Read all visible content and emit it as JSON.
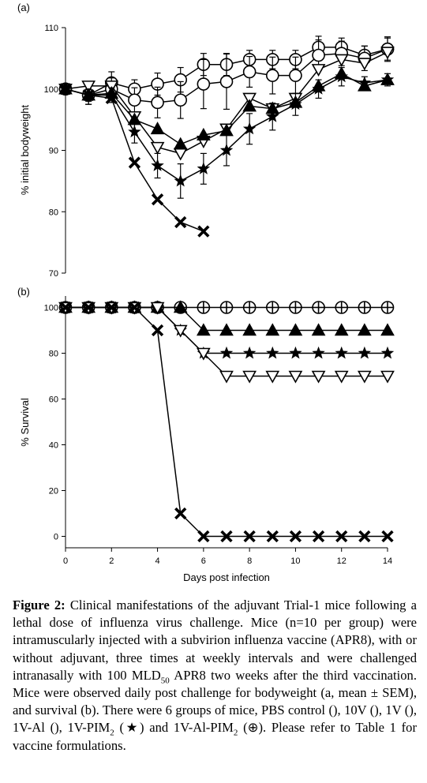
{
  "chart_data": [
    {
      "type": "line",
      "panel_label": "(a)",
      "ylabel": "% initial bodyweight",
      "xlim": [
        0,
        14
      ],
      "ylim": [
        70,
        110
      ],
      "yticks": [
        "70",
        "80",
        "90",
        "100",
        "110"
      ],
      "series": [
        {
          "marker": "circle",
          "x": [
            0,
            1,
            2,
            3,
            4,
            5,
            6,
            7,
            8,
            9,
            10,
            11,
            12,
            13,
            14
          ],
          "y": [
            100,
            99,
            101,
            100,
            100.8,
            101.5,
            104,
            104,
            104.8,
            104.8,
            104.8,
            106.8,
            106.8,
            105.5,
            106.5
          ],
          "err": [
            0.5,
            1.5,
            1.8,
            1.5,
            1.8,
            2,
            1.8,
            1.8,
            1.5,
            1.5,
            1.5,
            1.8,
            1.5,
            1.5,
            1.8
          ]
        },
        {
          "marker": "circle",
          "x": [
            0,
            1,
            2,
            3,
            4,
            5,
            6,
            7,
            8,
            9,
            10,
            11,
            12,
            13,
            14
          ],
          "y": [
            100,
            99,
            100,
            98.2,
            97.8,
            98.2,
            100.8,
            101.2,
            102.8,
            102.2,
            102.2,
            105.5,
            105.8,
            105,
            106.5
          ],
          "err": [
            0.5,
            1.5,
            1.8,
            2,
            2.5,
            3,
            4,
            4.5,
            2.5,
            3,
            3,
            2.5,
            2,
            2,
            2
          ]
        },
        {
          "marker": "triangle-down",
          "x": [
            0,
            1,
            2,
            3,
            4,
            5,
            6,
            7,
            8,
            9,
            10,
            11,
            12,
            13,
            14
          ],
          "y": [
            100,
            100.5,
            100.5,
            95.5,
            90.5,
            89.5,
            91.5,
            93.5,
            98.5,
            96.8,
            98.5,
            103.2,
            104.8,
            104.2,
            106
          ]
        },
        {
          "marker": "triangle-up",
          "x": [
            0,
            1,
            2,
            3,
            4,
            5,
            6,
            7,
            8,
            9,
            10,
            11,
            12,
            13,
            14
          ],
          "y": [
            100,
            99,
            99.3,
            95,
            93.5,
            91,
            92.5,
            93.2,
            97.2,
            96.8,
            97.8,
            100.5,
            102.5,
            100.5,
            101.5
          ]
        },
        {
          "marker": "star",
          "x": [
            0,
            1,
            2,
            3,
            4,
            5,
            6,
            7,
            8,
            9,
            10,
            11,
            12,
            13,
            14
          ],
          "y": [
            100,
            99,
            99,
            93,
            87.5,
            85,
            87,
            90,
            93.5,
            95.5,
            97.5,
            100,
            102,
            101,
            101.5
          ],
          "err": [
            0.5,
            1,
            1.2,
            1.8,
            2,
            2.8,
            2.5,
            2.5,
            2.5,
            2.2,
            1.8,
            1.5,
            1.5,
            1,
            1
          ]
        },
        {
          "marker": "cross",
          "x": [
            0,
            1,
            2,
            3,
            4,
            5,
            6
          ],
          "y": [
            100,
            99,
            98.5,
            88,
            82,
            78.3,
            76.8
          ]
        }
      ]
    },
    {
      "type": "line",
      "panel_label": "(b)",
      "ylabel": "% Survival",
      "xlabel": "Days post infection",
      "xlim": [
        0,
        14
      ],
      "ylim": [
        -5,
        105
      ],
      "xticks": [
        "0",
        "2",
        "4",
        "6",
        "8",
        "10",
        "12",
        "14"
      ],
      "yticks": [
        "0",
        "20",
        "40",
        "60",
        "80",
        "100"
      ],
      "series": [
        {
          "marker": "circle-plus",
          "x": [
            0,
            1,
            2,
            3,
            4,
            5,
            6,
            7,
            8,
            9,
            10,
            11,
            12,
            13,
            14
          ],
          "y": [
            100,
            100,
            100,
            100,
            100,
            100,
            100,
            100,
            100,
            100,
            100,
            100,
            100,
            100,
            100
          ]
        },
        {
          "marker": "triangle-up",
          "x": [
            0,
            1,
            2,
            3,
            4,
            5,
            6,
            7,
            8,
            9,
            10,
            11,
            12,
            13,
            14
          ],
          "y": [
            100,
            100,
            100,
            100,
            100,
            100,
            90,
            90,
            90,
            90,
            90,
            90,
            90,
            90,
            90
          ]
        },
        {
          "marker": "star",
          "x": [
            0,
            1,
            2,
            3,
            4,
            5,
            6,
            7,
            8,
            9,
            10,
            11,
            12,
            13,
            14
          ],
          "y": [
            100,
            100,
            100,
            100,
            100,
            90,
            80,
            80,
            80,
            80,
            80,
            80,
            80,
            80,
            80
          ]
        },
        {
          "marker": "triangle-down",
          "x": [
            0,
            1,
            2,
            3,
            4,
            5,
            6,
            7,
            8,
            9,
            10,
            11,
            12,
            13,
            14
          ],
          "y": [
            100,
            100,
            100,
            100,
            100,
            90,
            80,
            70,
            70,
            70,
            70,
            70,
            70,
            70,
            70
          ]
        },
        {
          "marker": "cross",
          "x": [
            0,
            1,
            2,
            3,
            4,
            5,
            6,
            7,
            8,
            9,
            10,
            11,
            12,
            13,
            14
          ],
          "y": [
            100,
            100,
            100,
            100,
            90,
            10,
            0,
            0,
            0,
            0,
            0,
            0,
            0,
            0,
            0
          ]
        }
      ]
    }
  ],
  "caption": {
    "lead": "Figure 2:",
    "text_before_sub1": " Clinical manifestations of the adjuvant Trial-1 mice following a lethal dose of influenza virus challenge. Mice (n=10 per group) were intramuscularly injected with a subvirion influenza vaccine (APR8), with or without adjuvant, three times at weekly intervals and were challenged intranasally with 100 MLD",
    "sub1": "50",
    "text_before_sub2": " APR8 two weeks after the third vaccination. Mice were observed daily post challenge for bodyweight (a, mean ± SEM), and survival (b). There were 6 groups of mice, PBS control (), 10V (), 1V (), 1V-Al (), 1V-PIM",
    "sub2": "2",
    "text_before_sub3": " (★) and 1V-Al-PIM",
    "sub3": "2",
    "text_end": " (⊕). Please refer to Table 1 for vaccine formulations."
  }
}
